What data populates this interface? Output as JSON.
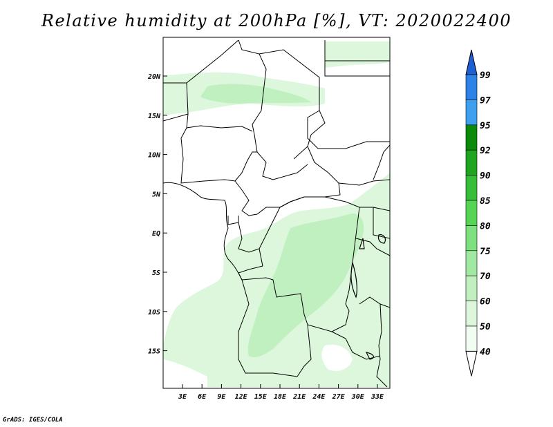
{
  "title": "Relative humidity at 200hPa [%], VT: 2020022400",
  "credit": "GrADS: IGES/COLA",
  "map": {
    "lat_ticks": [
      "20N",
      "15N",
      "10N",
      "5N",
      "EQ",
      "5S",
      "10S",
      "15S"
    ],
    "lon_ticks": [
      "3E",
      "6E",
      "9E",
      "12E",
      "15E",
      "18E",
      "21E",
      "24E",
      "27E",
      "30E",
      "33E"
    ]
  },
  "colorbar": {
    "levels": [
      "99",
      "97",
      "95",
      "92",
      "90",
      "85",
      "80",
      "75",
      "70",
      "60",
      "50",
      "40"
    ],
    "colors": [
      "#1e5fd6",
      "#2f82e8",
      "#3ea0ee",
      "#0c8a0c",
      "#1fa51f",
      "#38bd38",
      "#55d455",
      "#7ee07e",
      "#a1e9a1",
      "#c0f0c0",
      "#dcf7dc",
      "#f2fdf2"
    ]
  },
  "fill_colors": {
    "light": "#dcf7dc",
    "medium": "#c0f0c0"
  }
}
